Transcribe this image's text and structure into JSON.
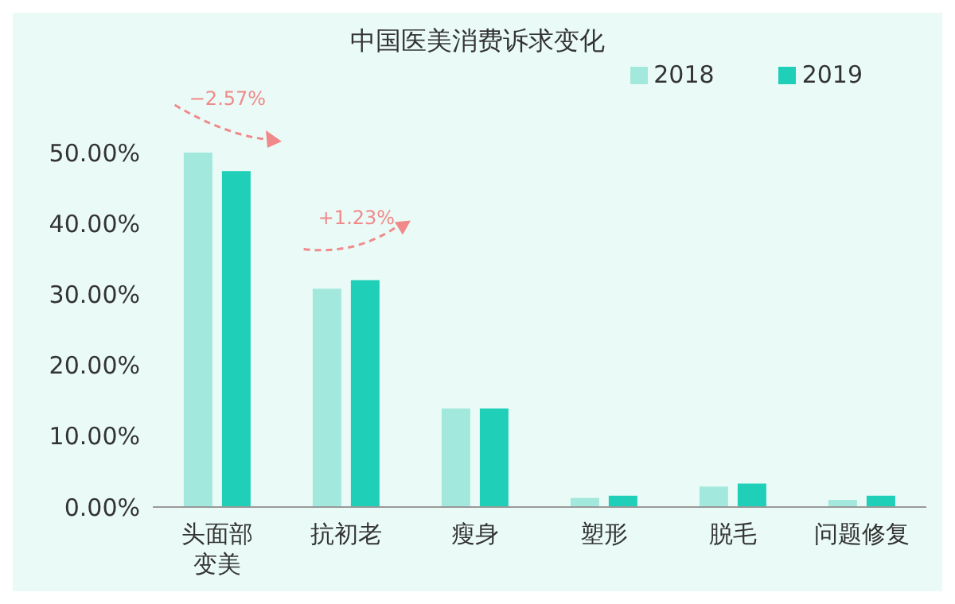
{
  "chart_data": {
    "type": "bar",
    "title": "中国医美消费诉求变化",
    "categories": [
      "头面部变美",
      "抗初老",
      "瘦身",
      "塑形",
      "脱毛",
      "问题修复"
    ],
    "series": [
      {
        "name": "2018",
        "color": "#a3e8dc",
        "values": [
          50.0,
          30.8,
          13.9,
          1.3,
          2.9,
          1.0
        ]
      },
      {
        "name": "2019",
        "color": "#1fcfb8",
        "values": [
          47.4,
          32.0,
          13.9,
          1.6,
          3.3,
          1.6
        ]
      }
    ],
    "ylim": [
      0,
      50
    ],
    "yticks": [
      {
        "value": 0,
        "label": "0.00%"
      },
      {
        "value": 10,
        "label": "10.00%"
      },
      {
        "value": 20,
        "label": "20.00%"
      },
      {
        "value": 30,
        "label": "30.00%"
      },
      {
        "value": 40,
        "label": "40.00%"
      },
      {
        "value": 50,
        "label": "50.00%"
      }
    ],
    "annotations": [
      {
        "text": "−2.57%",
        "x": "头面部变美",
        "y": 50.0
      },
      {
        "text": "+1.23%",
        "x": "抗初老",
        "y": 32.0
      }
    ],
    "legend": "top right",
    "grid": false
  }
}
